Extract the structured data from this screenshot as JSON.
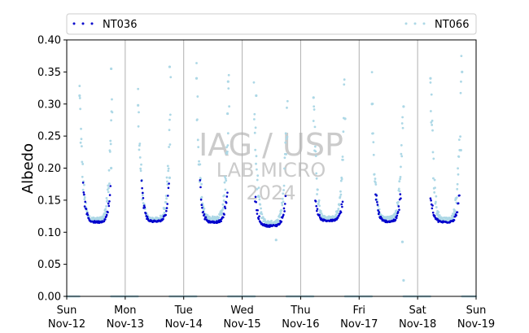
{
  "chart_data": {
    "type": "scatter",
    "title": "",
    "xlabel": "",
    "ylabel": "Albedo",
    "ylim": [
      0,
      0.4
    ],
    "yticks": [
      "0.00",
      "0.05",
      "0.10",
      "0.15",
      "0.20",
      "0.25",
      "0.30",
      "0.35",
      "0.40"
    ],
    "xlim": [
      "2023-11-12",
      "2023-11-19"
    ],
    "xticks": [
      {
        "day": "Sun",
        "date": "Nov-12"
      },
      {
        "day": "Mon",
        "date": "Nov-13"
      },
      {
        "day": "Tue",
        "date": "Nov-14"
      },
      {
        "day": "Wed",
        "date": "Nov-15"
      },
      {
        "day": "Thu",
        "date": "Nov-16"
      },
      {
        "day": "Fri",
        "date": "Nov-17"
      },
      {
        "day": "Sat",
        "date": "Nov-18"
      },
      {
        "day": "Sun",
        "date": "Nov-19"
      }
    ],
    "grid": "vertical at day boundaries",
    "legend": "top, two columns",
    "watermark": [
      "IAG / USP",
      "LAB MICRO",
      "2024"
    ],
    "series": [
      {
        "name": "NT036",
        "color": "#0000cc",
        "days": [
          {
            "start": 0.28,
            "end": 0.75,
            "minv": 0.116,
            "peak": 0.165
          },
          {
            "start": 0.28,
            "end": 0.75,
            "minv": 0.117,
            "peak": 0.168
          },
          {
            "start": 0.28,
            "end": 0.75,
            "minv": 0.116,
            "peak": 0.165
          },
          {
            "start": 0.22,
            "end": 0.75,
            "minv": 0.11,
            "peak": 0.15
          },
          {
            "start": 0.25,
            "end": 0.72,
            "minv": 0.118,
            "peak": 0.145
          },
          {
            "start": 0.28,
            "end": 0.72,
            "minv": 0.117,
            "peak": 0.163
          },
          {
            "start": 0.22,
            "end": 0.72,
            "minv": 0.116,
            "peak": 0.155
          }
        ]
      },
      {
        "name": "NT066",
        "color": "#add8e6",
        "days": [
          {
            "start": 0.22,
            "end": 0.78,
            "minv": 0.12,
            "peak": 0.31
          },
          {
            "start": 0.22,
            "end": 0.78,
            "minv": 0.12,
            "peak": 0.3
          },
          {
            "start": 0.22,
            "end": 0.78,
            "minv": 0.122,
            "peak": 0.34
          },
          {
            "start": 0.2,
            "end": 0.78,
            "minv": 0.115,
            "peak": 0.31
          },
          {
            "start": 0.22,
            "end": 0.75,
            "minv": 0.122,
            "peak": 0.31
          },
          {
            "start": 0.22,
            "end": 0.75,
            "minv": 0.122,
            "peak": 0.3
          },
          {
            "start": 0.22,
            "end": 0.75,
            "minv": 0.12,
            "peak": 0.34
          }
        ],
        "night_zero_ranges": [
          [
            0.0,
            0.22
          ],
          [
            0.76,
            1.22
          ],
          [
            1.76,
            2.22
          ],
          [
            2.76,
            3.22
          ],
          [
            3.76,
            4.22
          ],
          [
            4.76,
            5.22
          ],
          [
            5.76,
            6.22
          ],
          [
            6.76,
            7.0
          ]
        ],
        "outliers": [
          {
            "x": 0.22,
            "y": 0.313
          },
          {
            "x": 0.76,
            "y": 0.355
          },
          {
            "x": 0.76,
            "y": 0.2
          },
          {
            "x": 1.22,
            "y": 0.298
          },
          {
            "x": 1.76,
            "y": 0.358
          },
          {
            "x": 1.76,
            "y": 0.185
          },
          {
            "x": 2.22,
            "y": 0.34
          },
          {
            "x": 2.76,
            "y": 0.335
          },
          {
            "x": 2.75,
            "y": 0.285
          },
          {
            "x": 3.24,
            "y": 0.313
          },
          {
            "x": 3.58,
            "y": 0.088
          },
          {
            "x": 4.22,
            "y": 0.31
          },
          {
            "x": 4.76,
            "y": 0.277
          },
          {
            "x": 5.22,
            "y": 0.3
          },
          {
            "x": 5.76,
            "y": 0.296
          },
          {
            "x": 5.76,
            "y": 0.025
          },
          {
            "x": 5.74,
            "y": 0.085
          },
          {
            "x": 6.22,
            "y": 0.34
          },
          {
            "x": 6.76,
            "y": 0.35
          },
          {
            "x": 6.74,
            "y": 0.228
          }
        ]
      }
    ]
  }
}
